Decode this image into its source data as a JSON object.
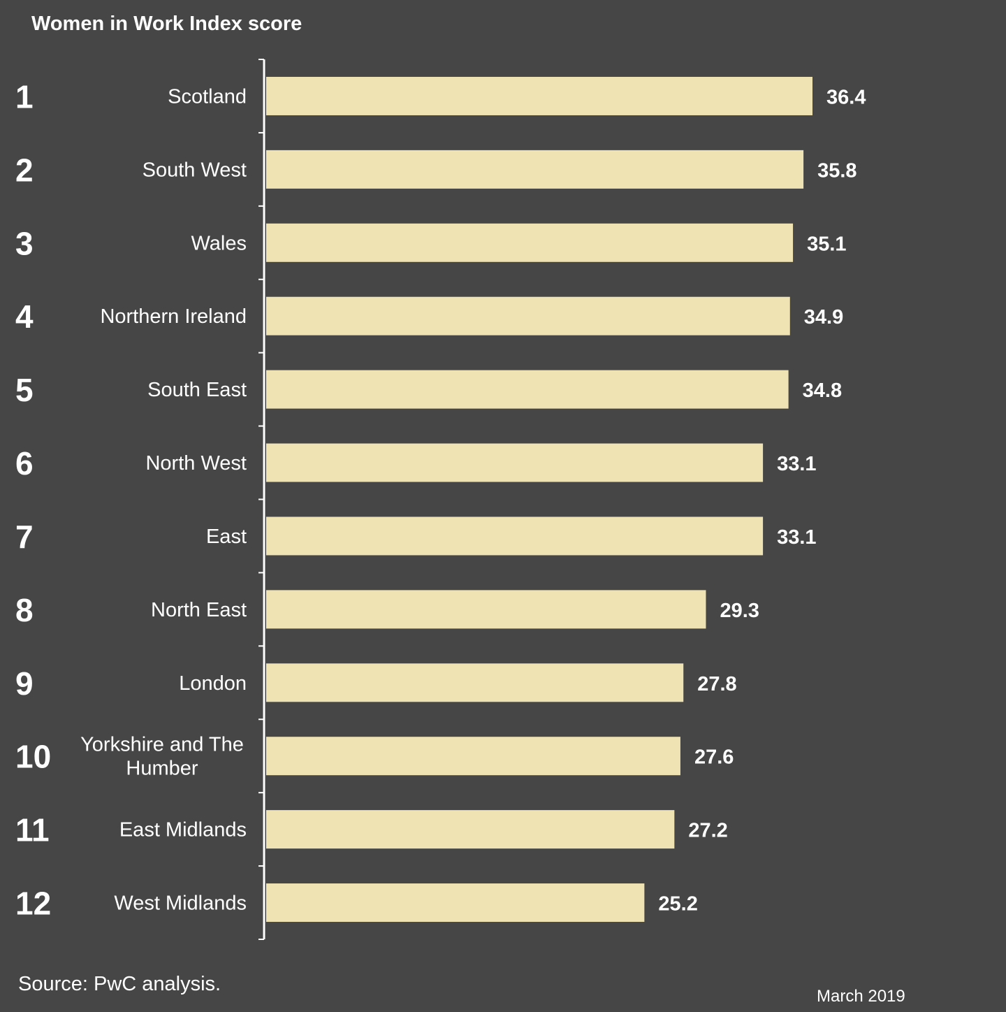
{
  "title": "Women in Work Index score",
  "source": "Source: PwC analysis.",
  "date": "March 2019",
  "colors": {
    "background": "#464646",
    "bar": "#efe3b3",
    "text": "#ffffff",
    "axis": "#ffffff"
  },
  "chart_data": {
    "type": "bar",
    "orientation": "horizontal",
    "title": "Women in Work Index score",
    "xlabel": "",
    "ylabel": "",
    "xlim": [
      0,
      36.4
    ],
    "grid": false,
    "ranks": [
      "1",
      "2",
      "3",
      "4",
      "5",
      "6",
      "7",
      "8",
      "9",
      "10",
      "11",
      "12"
    ],
    "categories": [
      "Scotland",
      "South West",
      "Wales",
      "Northern Ireland",
      "South East",
      "North West",
      "East",
      "North East",
      "London",
      "Yorkshire and The Humber",
      "East Midlands",
      "West Midlands"
    ],
    "category_lines": [
      [
        "Scotland"
      ],
      [
        "South West"
      ],
      [
        "Wales"
      ],
      [
        "Northern Ireland"
      ],
      [
        "South East"
      ],
      [
        "North West"
      ],
      [
        "East"
      ],
      [
        "North East"
      ],
      [
        "London"
      ],
      [
        "Yorkshire and The",
        "Humber"
      ],
      [
        "East Midlands"
      ],
      [
        "West Midlands"
      ]
    ],
    "values": [
      36.4,
      35.8,
      35.1,
      34.9,
      34.8,
      33.1,
      33.1,
      29.3,
      27.8,
      27.6,
      27.2,
      25.2
    ],
    "value_labels": [
      "36.4",
      "35.8",
      "35.1",
      "34.9",
      "34.8",
      "33.1",
      "33.1",
      "29.3",
      "27.8",
      "27.6",
      "27.2",
      "25.2"
    ]
  }
}
